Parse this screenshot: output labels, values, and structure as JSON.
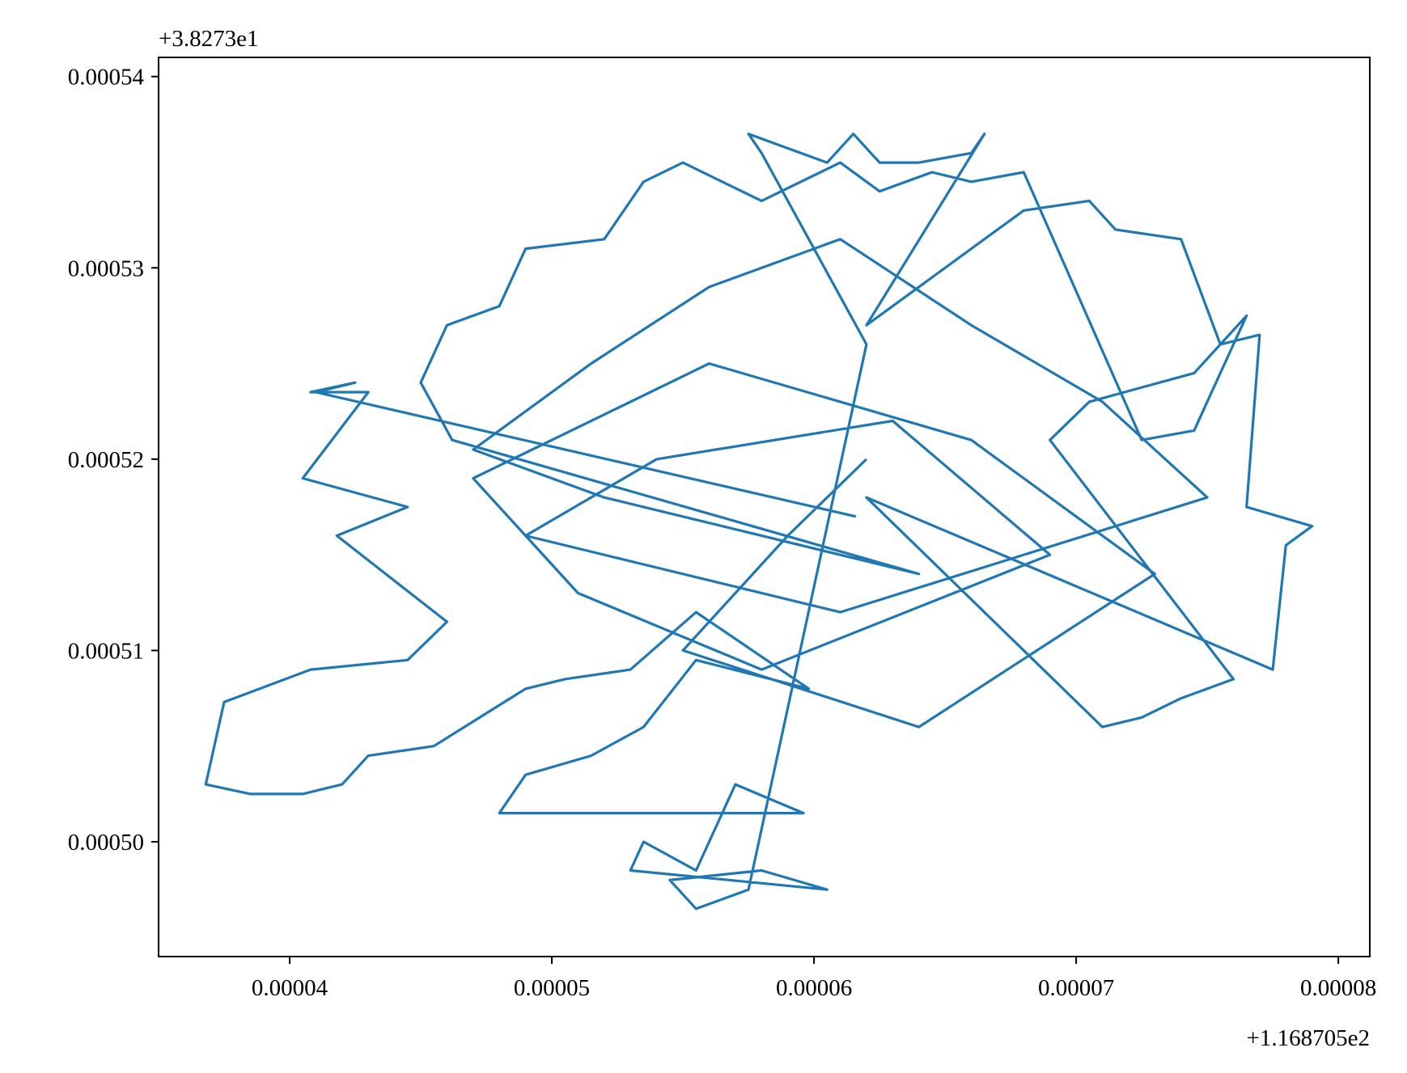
{
  "chart_data": {
    "type": "line",
    "title": "",
    "xlabel": "",
    "ylabel": "",
    "x_offset_label": "+1.168705e2",
    "y_offset_label": "+3.8273e1",
    "xlim": [
      3.5e-05,
      8.12e-05
    ],
    "ylim": [
      0.000494,
      0.000541
    ],
    "x_ticks": [
      4e-05,
      5e-05,
      6e-05,
      7e-05,
      8e-05
    ],
    "x_tick_labels": [
      "0.00004",
      "0.00005",
      "0.00006",
      "0.00007",
      "0.00008"
    ],
    "y_ticks": [
      0.0005,
      0.00051,
      0.00052,
      0.00053,
      0.00054
    ],
    "y_tick_labels": [
      "0.00050",
      "0.00051",
      "0.00052",
      "0.00053",
      "0.00054"
    ],
    "grid": false,
    "series_color": "#1f77b4",
    "series": [
      {
        "x": [
          6.16e-05,
          4.1e-05,
          4.25e-05,
          4.08e-05,
          4.3e-05,
          4.05e-05,
          4.45e-05,
          4.18e-05,
          4.6e-05,
          4.45e-05,
          4.08e-05,
          3.75e-05,
          3.68e-05,
          3.85e-05,
          4.05e-05,
          4.2e-05,
          4.3e-05,
          4.55e-05,
          4.9e-05,
          5.05e-05,
          5.3e-05,
          5.55e-05,
          5.98e-05,
          5.55e-05,
          5.35e-05,
          5.15e-05,
          4.9e-05,
          4.8e-05,
          5.96e-05,
          5.7e-05,
          5.55e-05,
          5.35e-05,
          5.3e-05,
          6.05e-05,
          5.8e-05,
          5.45e-05,
          5.55e-05,
          5.75e-05,
          6.2e-05,
          5.8e-05,
          5.75e-05,
          5.85e-05,
          6.05e-05,
          6.15e-05,
          6.25e-05,
          6.4e-05,
          6.6e-05,
          6.65e-05,
          6.2e-05,
          6.8e-05,
          7.05e-05,
          7.15e-05,
          7.4e-05,
          7.55e-05,
          7.7e-05,
          7.65e-05,
          7.9e-05,
          7.8e-05,
          7.75e-05,
          6.2e-05,
          7.1e-05,
          7.25e-05,
          7.4e-05,
          7.6e-05,
          6.9e-05,
          7.05e-05,
          7.45e-05,
          7.65e-05,
          7.55e-05,
          7.45e-05,
          7.25e-05,
          6.8e-05,
          6.6e-05,
          6.45e-05,
          6.25e-05,
          6.1e-05,
          5.8e-05,
          5.65e-05,
          5.5e-05,
          5.35e-05,
          5.2e-05,
          4.9e-05,
          4.8e-05,
          4.6e-05,
          4.55e-05,
          4.5e-05,
          4.62e-05,
          6.4e-05,
          5.2e-05,
          4.7e-05,
          5.15e-05,
          5.6e-05,
          6.1e-05,
          6.6e-05,
          7.1e-05,
          7.5e-05,
          6.1e-05,
          4.9e-05,
          5.4e-05,
          6.3e-05,
          6.9e-05,
          5.8e-05,
          5.1e-05,
          4.7e-05,
          5.6e-05,
          6.6e-05,
          7.3e-05,
          6.4e-05,
          5.5e-05,
          5.9e-05,
          6.2e-05
        ],
        "y": [
          0.000517,
          0.0005235,
          0.000524,
          0.0005235,
          0.0005235,
          0.000519,
          0.0005175,
          0.000516,
          0.0005115,
          0.0005095,
          0.000509,
          0.0005073,
          0.000503,
          0.0005025,
          0.0005025,
          0.000503,
          0.0005045,
          0.000505,
          0.000508,
          0.0005085,
          0.000509,
          0.000512,
          0.000508,
          0.0005095,
          0.000506,
          0.0005045,
          0.0005035,
          0.0005015,
          0.0005015,
          0.000503,
          0.0004985,
          0.0005,
          0.0004985,
          0.0004975,
          0.0004985,
          0.000498,
          0.0004965,
          0.0004975,
          0.000526,
          0.000536,
          0.000537,
          0.0005365,
          0.0005355,
          0.000537,
          0.0005355,
          0.0005355,
          0.000536,
          0.000537,
          0.000527,
          0.000533,
          0.0005335,
          0.000532,
          0.0005315,
          0.000526,
          0.0005265,
          0.0005175,
          0.0005165,
          0.0005155,
          0.000509,
          0.000518,
          0.000506,
          0.0005065,
          0.0005075,
          0.0005085,
          0.000521,
          0.000523,
          0.0005245,
          0.0005275,
          0.0005245,
          0.0005215,
          0.000521,
          0.000535,
          0.0005345,
          0.000535,
          0.000534,
          0.0005355,
          0.0005335,
          0.0005345,
          0.0005355,
          0.0005345,
          0.0005315,
          0.000531,
          0.000528,
          0.000527,
          0.0005255,
          0.000524,
          0.000521,
          0.000514,
          0.000518,
          0.0005205,
          0.000525,
          0.000529,
          0.0005315,
          0.000527,
          0.000523,
          0.000518,
          0.000512,
          0.000516,
          0.00052,
          0.000522,
          0.000515,
          0.000509,
          0.000513,
          0.000519,
          0.000525,
          0.000521,
          0.000514,
          0.000506,
          0.00051,
          0.000516,
          0.00052
        ]
      }
    ]
  }
}
